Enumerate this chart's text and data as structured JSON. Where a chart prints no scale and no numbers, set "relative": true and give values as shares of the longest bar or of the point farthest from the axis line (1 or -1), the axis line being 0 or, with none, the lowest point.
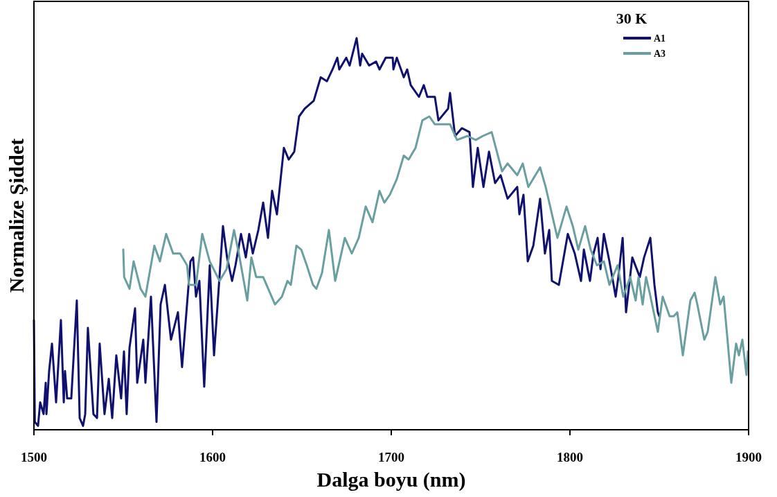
{
  "chart_data": {
    "type": "line",
    "relative": true,
    "xlabel": "Dalga boyu (nm)",
    "ylabel": "Normalize Şiddet",
    "legend_title": "30 K",
    "legend": "top right",
    "xlim": [
      1500,
      1900
    ],
    "xticks": [
      1500,
      1600,
      1700,
      1800,
      1900
    ],
    "grid": false,
    "series": [
      {
        "name": "A1",
        "color": "#10106e",
        "x": [
          1500,
          1500.5,
          1502.3,
          1503.5,
          1505.4,
          1506.6,
          1507,
          1508.5,
          1510.1,
          1512.4,
          1515.1,
          1516.7,
          1517.4,
          1518.6,
          1520.9,
          1524,
          1525.6,
          1527.5,
          1528.7,
          1530.2,
          1533.3,
          1535.3,
          1536.8,
          1539.5,
          1541.9,
          1543.8,
          1546.1,
          1548.8,
          1550.4,
          1551.9,
          1553.5,
          1556.6,
          1557.8,
          1561.2,
          1562.4,
          1565.5,
          1568.6,
          1570.9,
          1573.3,
          1576.7,
          1580.6,
          1582.9,
          1587.6,
          1589.1,
          1590.7,
          1592.6,
          1595.3,
          1598.4,
          1600.8,
          1603.1,
          1605.8,
          1608.1,
          1610.9,
          1612.8,
          1615.9,
          1618.6,
          1620.5,
          1622.5,
          1625.6,
          1628.3,
          1631,
          1633.3,
          1636,
          1639.9,
          1642.6,
          1645.7,
          1648.4,
          1651.6,
          1656.6,
          1660.5,
          1664,
          1667.1,
          1669.8,
          1670.9,
          1674.8,
          1676.7,
          1680.6,
          1682.6,
          1683.7,
          1687.6,
          1691.5,
          1693.4,
          1696.9,
          1700.8,
          1701.2,
          1703.1,
          1707,
          1708.9,
          1710.9,
          1715.5,
          1718.2,
          1720.2,
          1724.4,
          1726.4,
          1731.8,
          1732.9,
          1735.7,
          1739.5,
          1743.8,
          1745.7,
          1748.4,
          1751.6,
          1754.7,
          1758.1,
          1761.2,
          1765.1,
          1770.5,
          1771.7,
          1774,
          1776.4,
          1779.5,
          1783.3,
          1786,
          1788.4,
          1789.9,
          1793.8,
          1798.8,
          1802.7,
          1806.2,
          1807.8,
          1811.2,
          1813.2,
          1815.5,
          1817.1,
          1819,
          1822.1,
          1825.6,
          1827.1,
          1829.5,
          1831.4,
          1834.9,
          1839.1,
          1841.5,
          1845,
          1847.3,
          1849.2,
          1850
        ],
        "values": [
          0.28,
          0.02,
          0.01,
          0.07,
          0.04,
          0.12,
          0.04,
          0.15,
          0.22,
          0.07,
          0.28,
          0.07,
          0.15,
          0.08,
          0.08,
          0.33,
          0.03,
          0.01,
          0.04,
          0.26,
          0.04,
          0.03,
          0.22,
          0.04,
          0.13,
          0.03,
          0.19,
          0.08,
          0.2,
          0.04,
          0.21,
          0.31,
          0.12,
          0.23,
          0.12,
          0.34,
          0.02,
          0.32,
          0.37,
          0.23,
          0.3,
          0.16,
          0.43,
          0.44,
          0.34,
          0.38,
          0.11,
          0.42,
          0.19,
          0.34,
          0.52,
          0.44,
          0.38,
          0.42,
          0.5,
          0.44,
          0.5,
          0.45,
          0.51,
          0.58,
          0.49,
          0.61,
          0.55,
          0.72,
          0.69,
          0.71,
          0.8,
          0.82,
          0.84,
          0.9,
          0.89,
          0.92,
          0.95,
          0.92,
          0.95,
          0.93,
          1,
          0.93,
          0.96,
          0.93,
          0.94,
          0.92,
          0.95,
          0.95,
          0.92,
          0.95,
          0.9,
          0.92,
          0.88,
          0.85,
          0.88,
          0.85,
          0.85,
          0.79,
          0.82,
          0.86,
          0.75,
          0.77,
          0.76,
          0.62,
          0.72,
          0.62,
          0.71,
          0.63,
          0.65,
          0.59,
          0.62,
          0.55,
          0.6,
          0.43,
          0.47,
          0.59,
          0.45,
          0.51,
          0.38,
          0.37,
          0.5,
          0.45,
          0.38,
          0.46,
          0.38,
          0.45,
          0.49,
          0.41,
          0.5,
          0.43,
          0.34,
          0.39,
          0.49,
          0.3,
          0.44,
          0.39,
          0.44,
          0.49,
          0.37,
          0.3,
          0.29
        ]
      },
      {
        "name": "A3",
        "color": "#6a9fa0",
        "x": [
          1550,
          1550.5,
          1553.5,
          1555.8,
          1559.7,
          1562.4,
          1567.4,
          1570.5,
          1574,
          1577.9,
          1581.8,
          1585.7,
          1586.8,
          1590.7,
          1594.2,
          1598.4,
          1603.9,
          1607.8,
          1612,
          1614.7,
          1619.4,
          1621.7,
          1624.4,
          1628.3,
          1634.9,
          1638.8,
          1641.9,
          1643.8,
          1646.9,
          1649.6,
          1652.7,
          1656.2,
          1658.1,
          1661.2,
          1665.1,
          1668.6,
          1674,
          1677.9,
          1681.8,
          1685.7,
          1689.5,
          1693.4,
          1696.1,
          1699.2,
          1703.1,
          1707,
          1709.7,
          1713.6,
          1717.4,
          1721.3,
          1724.4,
          1729.1,
          1732.9,
          1736.8,
          1742.6,
          1747.3,
          1751.2,
          1756.2,
          1762,
          1765.1,
          1770.5,
          1773.6,
          1776.7,
          1783.3,
          1786.4,
          1793,
          1798.1,
          1801.6,
          1804.7,
          1808.5,
          1811.6,
          1815.1,
          1819,
          1822.1,
          1826.7,
          1829.8,
          1833.7,
          1836.8,
          1838.4,
          1840.7,
          1842.6,
          1844.6,
          1849.2,
          1851.9,
          1855.8,
          1858.1,
          1860.1,
          1863.2,
          1867.4,
          1869.8,
          1871.3,
          1875.2,
          1877.1,
          1881.4,
          1884.1,
          1886,
          1888,
          1890.3,
          1893,
          1894.6,
          1896.5,
          1898.8,
          1899.6
        ],
        "values": [
          0.46,
          0.39,
          0.36,
          0.43,
          0.36,
          0.34,
          0.47,
          0.43,
          0.5,
          0.45,
          0.45,
          0.42,
          0.37,
          0.37,
          0.5,
          0.43,
          0.38,
          0.41,
          0.51,
          0.45,
          0.33,
          0.44,
          0.39,
          0.39,
          0.32,
          0.34,
          0.38,
          0.37,
          0.47,
          0.46,
          0.42,
          0.37,
          0.36,
          0.4,
          0.51,
          0.38,
          0.49,
          0.45,
          0.49,
          0.57,
          0.53,
          0.61,
          0.58,
          0.6,
          0.64,
          0.7,
          0.69,
          0.72,
          0.79,
          0.8,
          0.78,
          0.78,
          0.78,
          0.74,
          0.75,
          0.74,
          0.75,
          0.76,
          0.66,
          0.68,
          0.65,
          0.68,
          0.62,
          0.67,
          0.62,
          0.49,
          0.57,
          0.52,
          0.46,
          0.52,
          0.46,
          0.42,
          0.43,
          0.37,
          0.42,
          0.34,
          0.39,
          0.33,
          0.39,
          0.32,
          0.39,
          0.35,
          0.25,
          0.34,
          0.29,
          0.29,
          0.3,
          0.19,
          0.33,
          0.35,
          0.32,
          0.23,
          0.25,
          0.39,
          0.32,
          0.34,
          0.24,
          0.12,
          0.22,
          0.19,
          0.23,
          0.14,
          0.2
        ]
      }
    ]
  }
}
